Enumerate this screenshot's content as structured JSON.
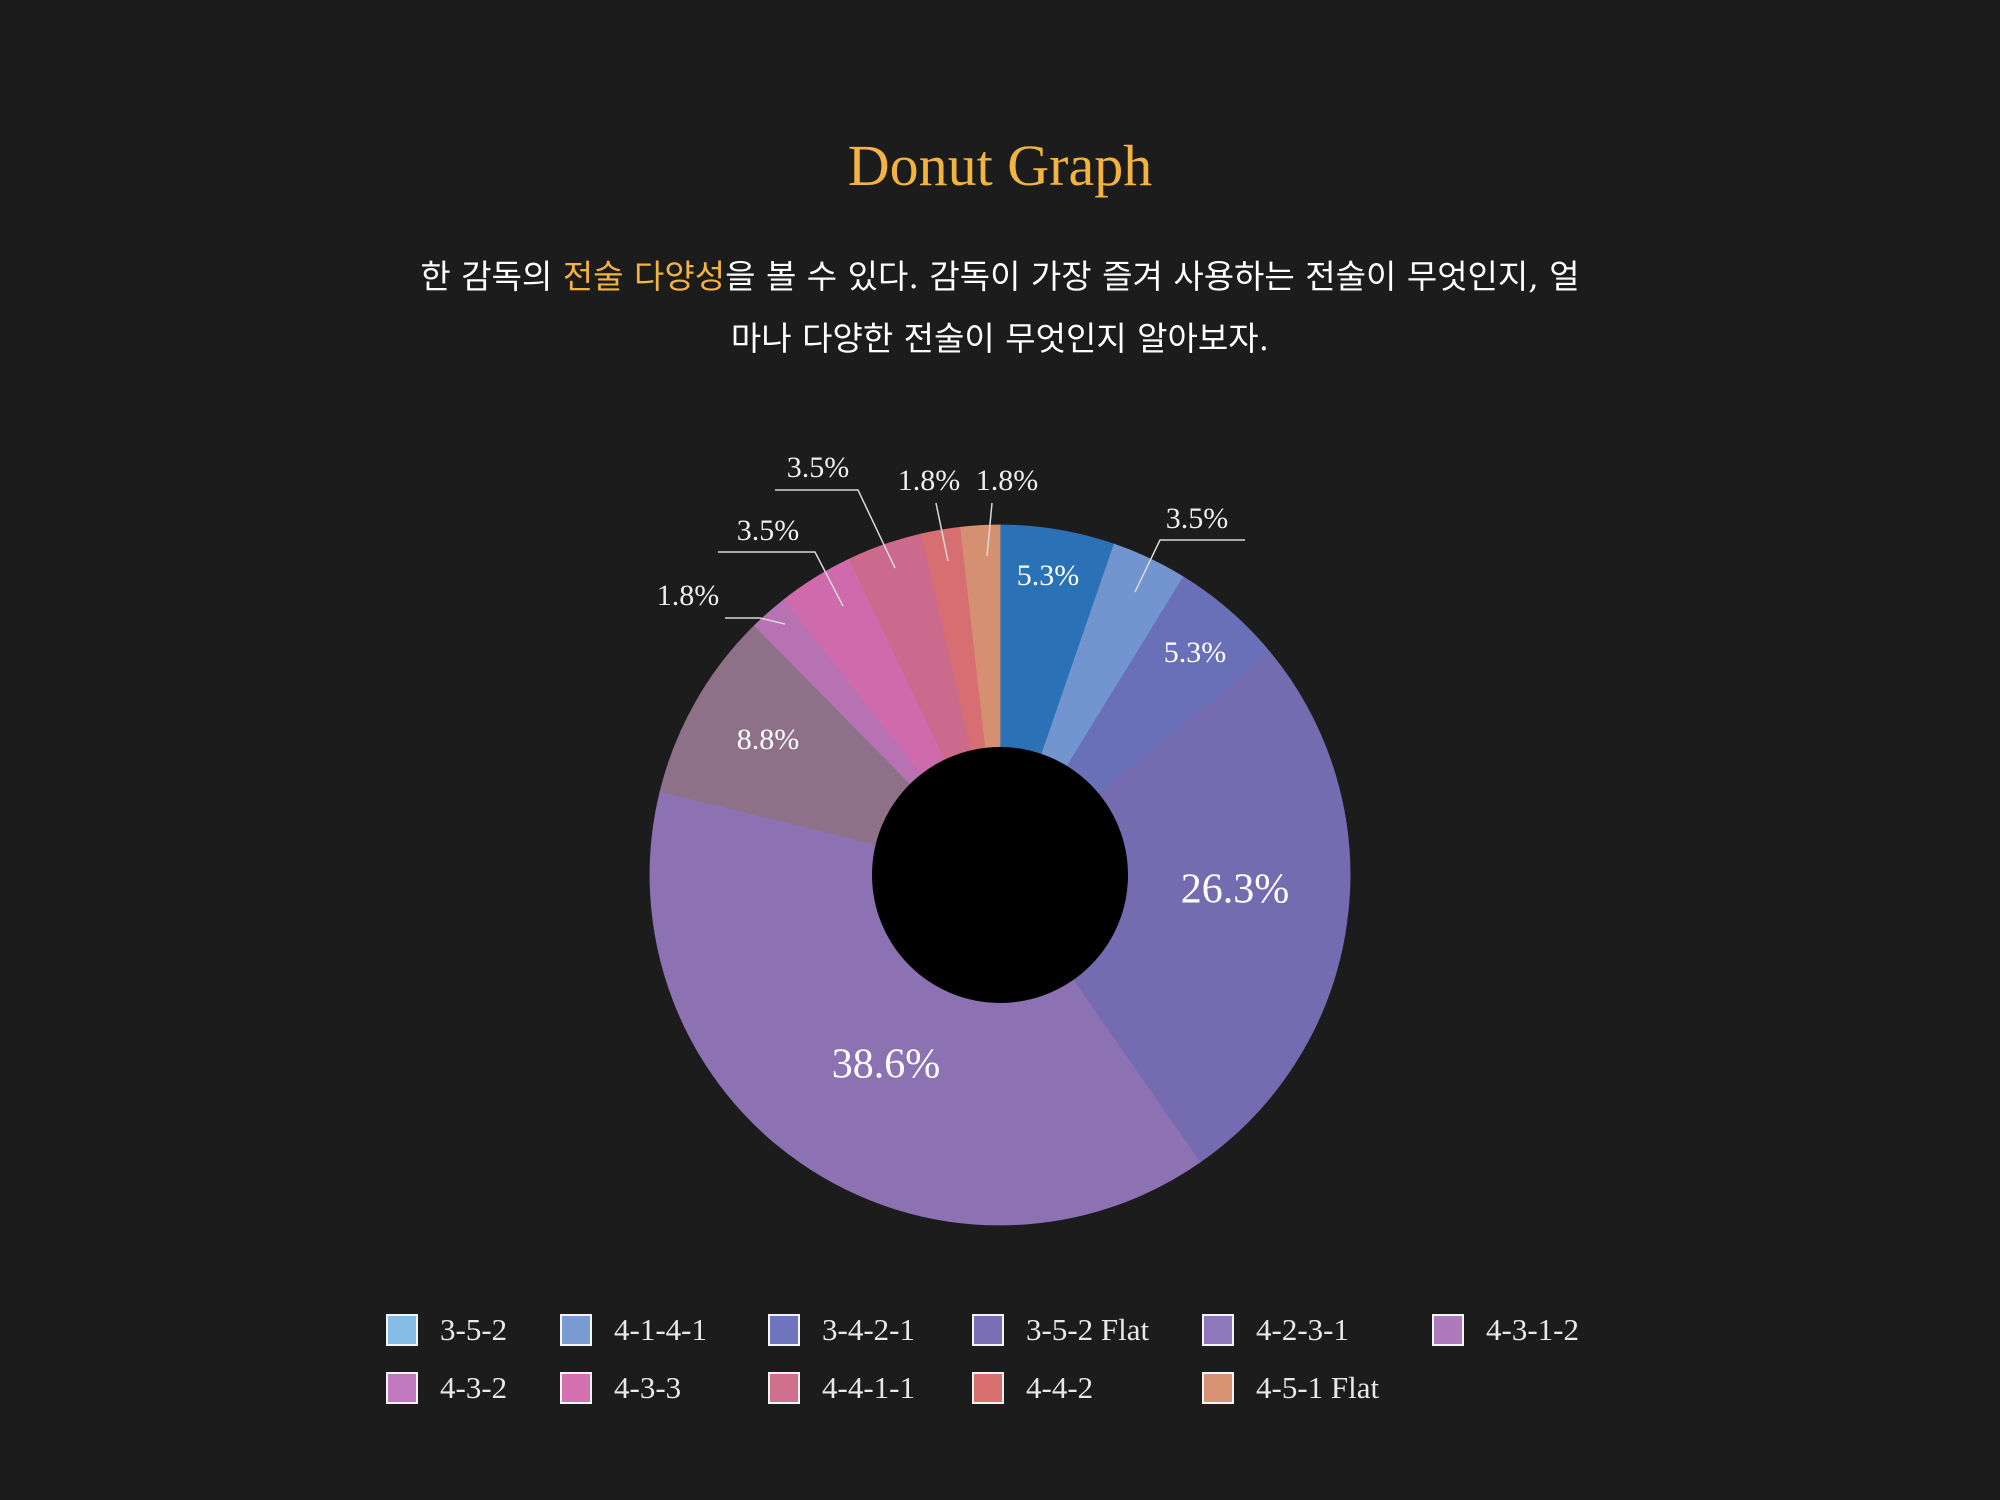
{
  "title": "Donut Graph",
  "subtitle": {
    "line1_pre": "한 감독의 ",
    "line1_highlight": "전술 다양성",
    "line1_post": "을 볼 수 있다. 감독이 가장 즐겨 사용하는 전술이 무엇인지, 얼",
    "line2": "마나 다양한 전술이 무엇인지 알아보자."
  },
  "colors": {
    "background": "#1c1c1c",
    "title": "#f2b340",
    "hole": "#000000"
  },
  "chart_data": {
    "type": "pie",
    "style": "donut",
    "legend_position": "bottom",
    "slices": [
      {
        "label": "3-5-2",
        "value": 5.3,
        "display": "5.3%",
        "color": "#2a72b5"
      },
      {
        "label": "4-1-4-1",
        "value": 3.5,
        "display": "3.5%",
        "color": "#7294cf"
      },
      {
        "label": "3-4-2-1",
        "value": 5.3,
        "display": "5.3%",
        "color": "#6a70b8"
      },
      {
        "label": "3-5-2 Flat",
        "value": 26.3,
        "display": "26.3%",
        "color": "#746bb0"
      },
      {
        "label": "4-2-3-1",
        "value": 38.6,
        "display": "38.6%",
        "color": "#8c71b3"
      },
      {
        "label": "4-3-1-2",
        "value": 8.8,
        "display": "8.8%",
        "color": "#8e7088"
      },
      {
        "label": "4-3-2",
        "value": 1.8,
        "display": "1.8%",
        "color": "#b672b2"
      },
      {
        "label": "4-3-3",
        "value": 3.5,
        "display": "3.5%",
        "color": "#cf6aad"
      },
      {
        "label": "4-4-1-1",
        "value": 3.5,
        "display": "3.5%",
        "color": "#cc6a8d"
      },
      {
        "label": "4-4-2",
        "value": 1.8,
        "display": "1.8%",
        "color": "#d66e72"
      },
      {
        "label": "4-5-1 Flat",
        "value": 1.8,
        "display": "1.8%",
        "color": "#d49070"
      }
    ],
    "legend": [
      {
        "label": "3-5-2",
        "color": "#86bde6"
      },
      {
        "label": "4-1-4-1",
        "color": "#7a9ad2"
      },
      {
        "label": "3-4-2-1",
        "color": "#6e74be"
      },
      {
        "label": "3-5-2 Flat",
        "color": "#7a6fb6"
      },
      {
        "label": "4-2-3-1",
        "color": "#8e78bb"
      },
      {
        "label": "4-3-1-2",
        "color": "#ad7abc"
      },
      {
        "label": "4-3-2",
        "color": "#c079bf"
      },
      {
        "label": "4-3-3",
        "color": "#d470b0"
      },
      {
        "label": "4-4-1-1",
        "color": "#d06f8e"
      },
      {
        "label": "4-4-2",
        "color": "#d87070"
      },
      {
        "label": "4-5-1 Flat",
        "color": "#d89274"
      }
    ]
  }
}
